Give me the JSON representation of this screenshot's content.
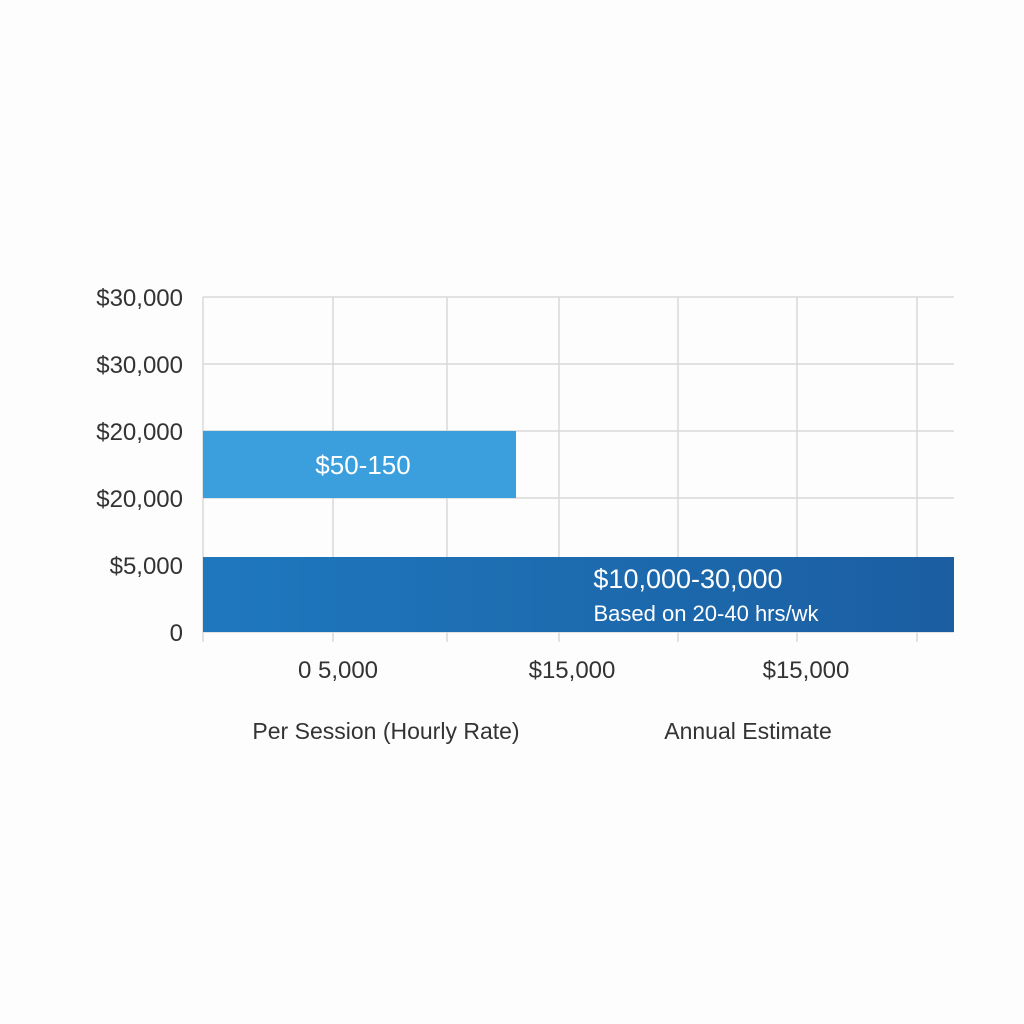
{
  "chart_data": {
    "type": "bar",
    "orientation": "horizontal",
    "grid": true,
    "y_tick_labels": [
      "$30,000",
      "$30,000",
      "$20,000",
      "$20,000",
      "$5,000",
      "0"
    ],
    "x_tick_labels": [
      "0 5,000",
      "$15,000",
      "$15,000"
    ],
    "category_labels": [
      "Per Session (Hourly Rate)",
      "Annual Estimate"
    ],
    "bars": [
      {
        "label": "$50-150",
        "sublabel": "",
        "color": "#3a9fdc",
        "color_end": "#3a9fdc"
      },
      {
        "label": "$10,000-30,000",
        "sublabel": "Based on 20-40 hrs/wk",
        "color": "#1f78be",
        "color_end": "#1b5ea1"
      }
    ]
  }
}
